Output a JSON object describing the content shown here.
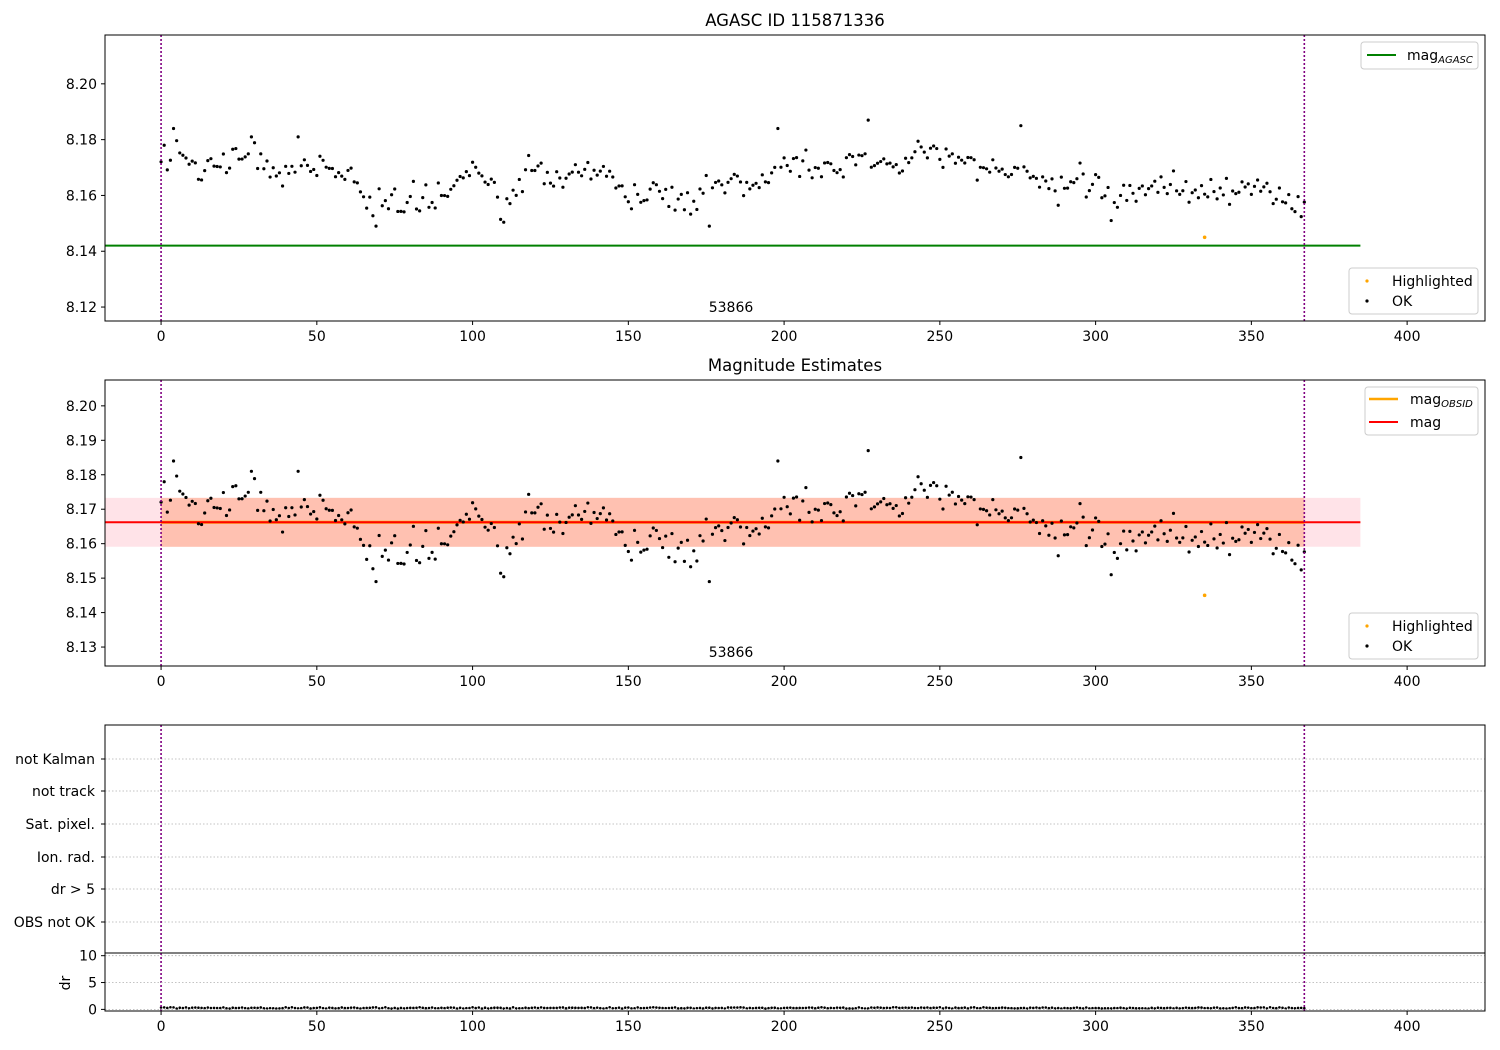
{
  "figure": {
    "colors": {
      "ok": "#000000",
      "highlighted": "#ffa500",
      "mag_agasc": "#008000",
      "mag_obsid": "#ffa500",
      "mag": "#ff0000",
      "obsid_band": "#ffa07a",
      "mag_band": "#ffc0cb",
      "obs_boundary": "#800080",
      "grid": "#b0b0b0"
    }
  },
  "chart_data": [
    {
      "type": "scatter",
      "title": "AGASC ID 115871336",
      "xlabel": "",
      "ylabel": "",
      "xlim": [
        -18,
        425
      ],
      "ylim": [
        8.115,
        8.2175
      ],
      "xticks": [
        0,
        50,
        100,
        150,
        200,
        250,
        300,
        350,
        400
      ],
      "yticks": [
        8.12,
        8.14,
        8.16,
        8.18,
        8.2
      ],
      "ytick_labels": [
        "8.12",
        "8.14",
        "8.16",
        "8.18",
        "8.20"
      ],
      "annotation": "53866",
      "obs_boundaries": [
        0,
        367
      ],
      "hlines": [
        {
          "name": "mag_AGASC",
          "y": 8.142,
          "x": [
            -18,
            385
          ]
        }
      ],
      "legend_lines": [
        {
          "label": "mag",
          "sub": "AGASC",
          "color": "#008000"
        }
      ],
      "legend_points": [
        "Highlighted",
        "OK"
      ],
      "highlighted": [
        {
          "x": 335,
          "y": 8.145
        }
      ]
    },
    {
      "type": "scatter",
      "title": "Magnitude Estimates",
      "xlabel": "",
      "ylabel": "",
      "xlim": [
        -18,
        425
      ],
      "ylim": [
        8.1245,
        8.2075
      ],
      "xticks": [
        0,
        50,
        100,
        150,
        200,
        250,
        300,
        350,
        400
      ],
      "yticks": [
        8.13,
        8.14,
        8.15,
        8.16,
        8.17,
        8.18,
        8.19,
        8.2
      ],
      "ytick_labels": [
        "8.13",
        "8.14",
        "8.15",
        "8.16",
        "8.17",
        "8.18",
        "8.19",
        "8.20"
      ],
      "annotation": "53866",
      "obs_boundaries": [
        0,
        367
      ],
      "hlines": [
        {
          "name": "mag_OBSID",
          "y": 8.1662,
          "x": [
            0,
            367
          ]
        },
        {
          "name": "mag",
          "y": 8.1662,
          "x": [
            -18,
            385
          ]
        }
      ],
      "bands": [
        {
          "name": "mag band",
          "y": [
            8.1591,
            8.1733
          ],
          "x": [
            -18,
            385
          ]
        },
        {
          "name": "mag_OBSID band",
          "y": [
            8.1591,
            8.1733
          ],
          "x": [
            0,
            367
          ]
        }
      ],
      "legend_lines": [
        {
          "label": "mag",
          "sub": "OBSID",
          "color": "#ffa500"
        },
        {
          "label": "mag",
          "sub": "",
          "color": "#ff0000"
        }
      ],
      "legend_points": [
        "Highlighted",
        "OK"
      ],
      "highlighted": [
        {
          "x": 335,
          "y": 8.145
        }
      ]
    },
    {
      "type": "scatter",
      "title": "",
      "xlim": [
        -18,
        425
      ],
      "ytick_labels": [
        "not Kalman",
        "not track",
        "Sat. pixel.",
        "Ion. rad.",
        "dr > 5",
        "OBS not OK"
      ],
      "obs_boundaries": [
        0,
        367
      ]
    },
    {
      "type": "scatter",
      "title": "",
      "xlabel": "",
      "ylabel": "dr",
      "xlim": [
        -18,
        425
      ],
      "ylim": [
        -0.3,
        10.5
      ],
      "xticks": [
        0,
        50,
        100,
        150,
        200,
        250,
        300,
        350,
        400
      ],
      "yticks": [
        0,
        5,
        10
      ],
      "ytick_labels": [
        "0",
        "5",
        "10"
      ],
      "obs_boundaries": [
        0,
        367
      ],
      "dr_typical": 0.15
    }
  ]
}
